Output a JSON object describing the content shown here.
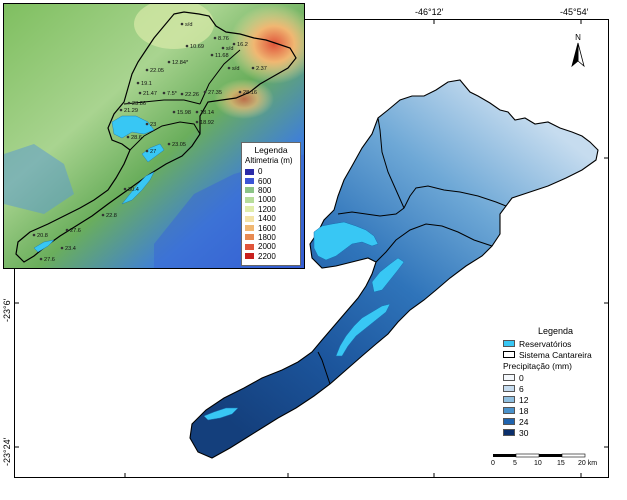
{
  "map": {
    "lon_ticks": [
      "-46°12′",
      "-45°54′"
    ],
    "lat_ticks": [
      "-23°6′",
      "-23°24′"
    ]
  },
  "inset": {
    "legend_title": "Legenda",
    "legend_subtitle": "Altimetria (m)",
    "classes": [
      {
        "label": "0",
        "color": "#2b2ba8"
      },
      {
        "label": "600",
        "color": "#3c55d6"
      },
      {
        "label": "800",
        "color": "#8cc487"
      },
      {
        "label": "1000",
        "color": "#b7dd9a"
      },
      {
        "label": "1200",
        "color": "#e1edaa"
      },
      {
        "label": "1400",
        "color": "#f4e3a6"
      },
      {
        "label": "1600",
        "color": "#f0b772"
      },
      {
        "label": "1800",
        "color": "#e88a52"
      },
      {
        "label": "2000",
        "color": "#e0553b"
      },
      {
        "label": "2200",
        "color": "#c8201e"
      }
    ],
    "stations": [
      {
        "label": "s/d"
      },
      {
        "label": "10.69"
      },
      {
        "label": "8.76"
      },
      {
        "label": "16.2"
      },
      {
        "label": "s/d"
      },
      {
        "label": "11.68"
      },
      {
        "label": "12.84*"
      },
      {
        "label": "22.05"
      },
      {
        "label": "s/d"
      },
      {
        "label": "2.37"
      },
      {
        "label": "19.1"
      },
      {
        "label": "21.47"
      },
      {
        "label": "7.5*"
      },
      {
        "label": "22.26"
      },
      {
        "label": "27.35"
      },
      {
        "label": "28.16"
      },
      {
        "label": "23.86"
      },
      {
        "label": "15.98"
      },
      {
        "label": "18.14"
      },
      {
        "label": "21.29"
      },
      {
        "label": "18.92"
      },
      {
        "label": "28.6"
      },
      {
        "label": "23"
      },
      {
        "label": "23.05"
      },
      {
        "label": "27"
      },
      {
        "label": "30.4"
      },
      {
        "label": "22.8"
      },
      {
        "label": "20.8"
      },
      {
        "label": "27.6"
      },
      {
        "label": "23.4"
      },
      {
        "label": "27.6"
      }
    ]
  },
  "legend": {
    "title": "Legenda",
    "reservoirs": "Reservatórios",
    "system": "Sistema Cantareira",
    "precip_title": "Precipitação (mm)",
    "precip_classes": [
      {
        "label": "0",
        "color": "#f4f8fc"
      },
      {
        "label": "6",
        "color": "#c6dcef"
      },
      {
        "label": "12",
        "color": "#8fbfe0"
      },
      {
        "label": "18",
        "color": "#4a92cb"
      },
      {
        "label": "24",
        "color": "#1f63ae"
      },
      {
        "label": "30",
        "color": "#0b2f6b"
      }
    ],
    "reservoir_color": "#38c7f4"
  },
  "scale": {
    "ticks": [
      "0",
      "5",
      "10",
      "15",
      "20 km"
    ]
  },
  "north": {
    "label": "N"
  }
}
